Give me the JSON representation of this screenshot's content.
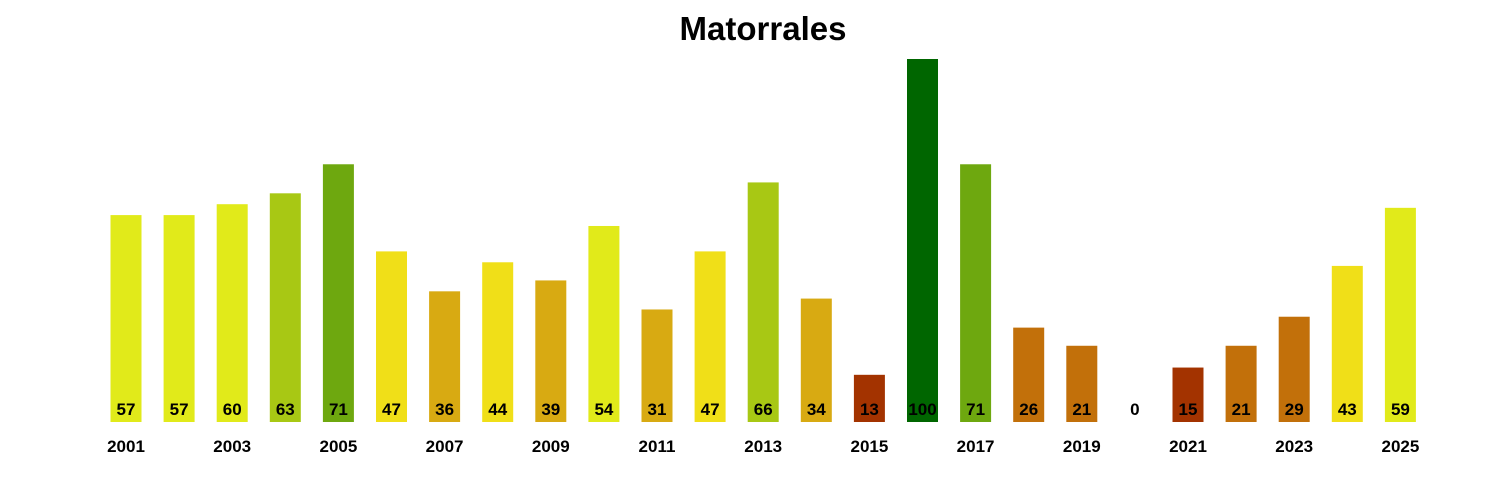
{
  "chart_data": {
    "type": "bar",
    "title": "Matorrales",
    "xlabel": "",
    "ylabel": "",
    "ylim": [
      0,
      100
    ],
    "grid": false,
    "categories": [
      "2001",
      "2002",
      "2003",
      "2004",
      "2005",
      "2006",
      "2007",
      "2008",
      "2009",
      "2010",
      "2011",
      "2012",
      "2013",
      "2014",
      "2015",
      "2016",
      "2017",
      "2018",
      "2019",
      "2020",
      "2021",
      "2022",
      "2023",
      "2024",
      "2025"
    ],
    "values": [
      57,
      57,
      60,
      63,
      71,
      47,
      36,
      44,
      39,
      54,
      31,
      47,
      66,
      34,
      13,
      100,
      71,
      26,
      21,
      0,
      15,
      21,
      29,
      43,
      59
    ],
    "tick_labels": [
      "2001",
      "2003",
      "2005",
      "2007",
      "2009",
      "2011",
      "2013",
      "2015",
      "2017",
      "2019",
      "2021",
      "2023",
      "2025"
    ],
    "colors": [
      "#e1ea1a",
      "#e1ea1a",
      "#e1ea1a",
      "#a8c814",
      "#6ea80f",
      "#f0df18",
      "#d8aa12",
      "#f0df18",
      "#d8aa12",
      "#e1ea1a",
      "#d8aa12",
      "#f0df18",
      "#a8c814",
      "#d8aa12",
      "#a33300",
      "#006600",
      "#6ea80f",
      "#c2700a",
      "#c2700a",
      "#a33300",
      "#a33300",
      "#c2700a",
      "#c2700a",
      "#f0df18",
      "#e1ea1a"
    ]
  }
}
